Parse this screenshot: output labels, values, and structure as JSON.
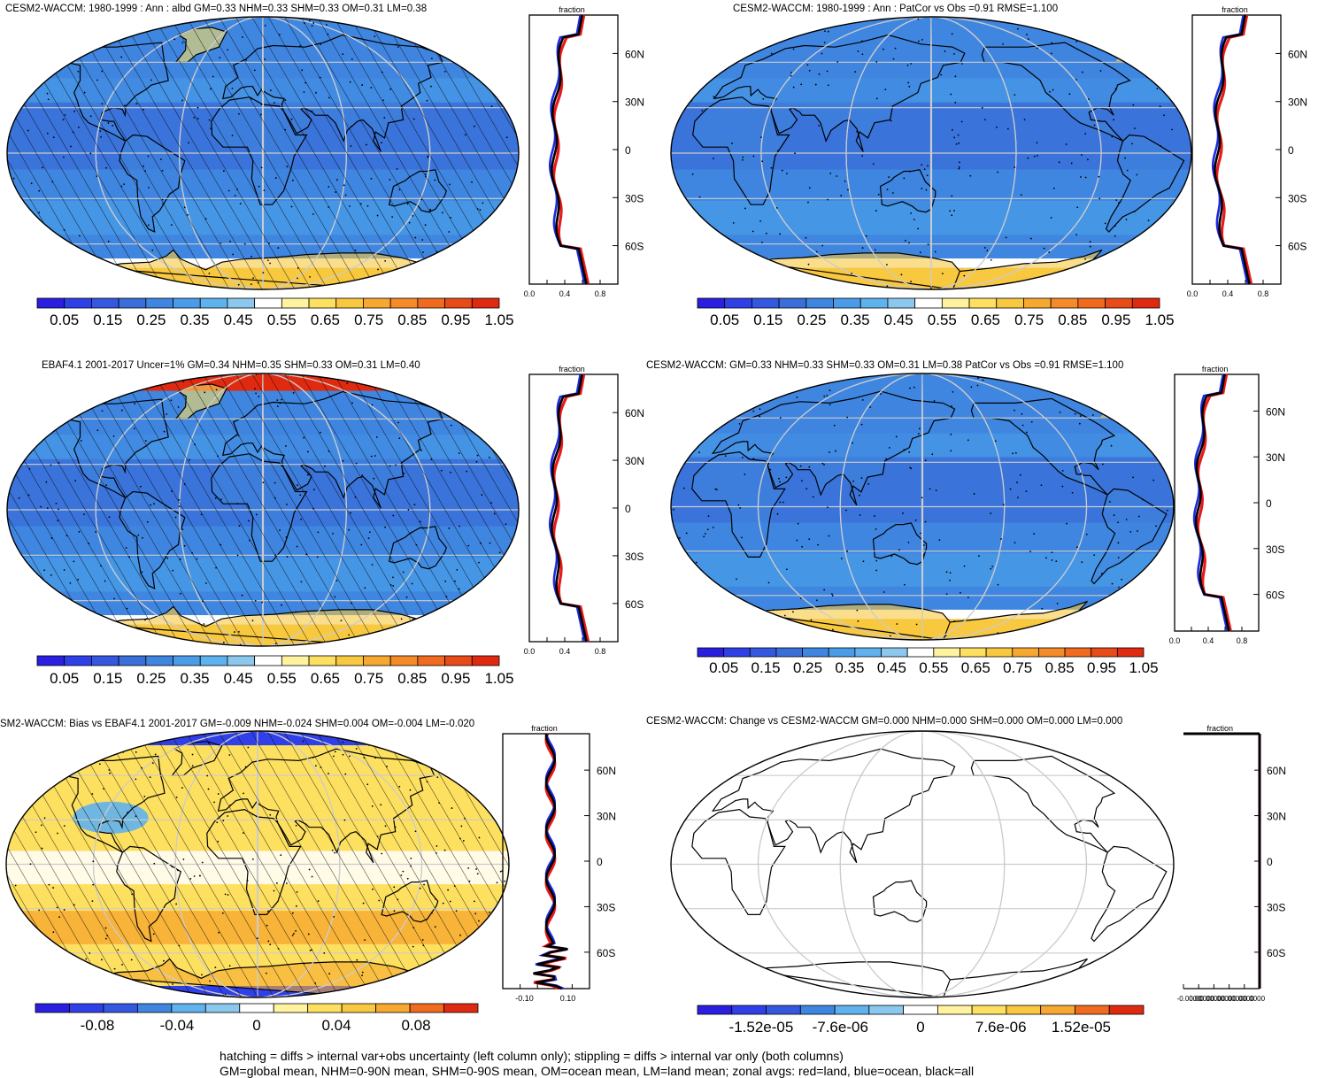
{
  "panels": [
    {
      "title": "CESM2-WACCM: 1980-1999 : Ann : albd GM=0.33 NHM=0.33 SHM=0.33 OM=0.31 LM=0.38",
      "zonal_title": "fraction",
      "lat_ticks": [
        "60N",
        "30N",
        "0",
        "30S",
        "60S"
      ],
      "x_ticks": [
        "0.0",
        "0.4",
        "0.8"
      ],
      "colorbar": [
        "0.05",
        "0.15",
        "0.25",
        "0.35",
        "0.45",
        "0.55",
        "0.65",
        "0.75",
        "0.85",
        "0.95",
        "1.05"
      ]
    },
    {
      "title": "CESM2-WACCM: 1980-1999 : Ann : PatCor vs Obs =0.91 RMSE=1.100",
      "zonal_title": "fraction",
      "lat_ticks": [
        "60N",
        "30N",
        "0",
        "30S",
        "60S"
      ],
      "x_ticks": [
        "0.0",
        "0.4",
        "0.8"
      ],
      "colorbar": [
        "0.05",
        "0.15",
        "0.25",
        "0.35",
        "0.45",
        "0.55",
        "0.65",
        "0.75",
        "0.85",
        "0.95",
        "1.05"
      ]
    },
    {
      "title": "EBAF4.1 2001-2017 Uncer=1% GM=0.34 NHM=0.35 SHM=0.33 OM=0.31 LM=0.40",
      "zonal_title": "fraction",
      "lat_ticks": [
        "60N",
        "30N",
        "0",
        "30S",
        "60S"
      ],
      "x_ticks": [
        "0.0",
        "0.4",
        "0.8"
      ],
      "colorbar": [
        "0.05",
        "0.15",
        "0.25",
        "0.35",
        "0.45",
        "0.55",
        "0.65",
        "0.75",
        "0.85",
        "0.95",
        "1.05"
      ]
    },
    {
      "title": "CESM2-WACCM: GM=0.33 NHM=0.33 SHM=0.33 OM=0.31 LM=0.38 PatCor vs Obs =0.91 RMSE=1.100",
      "zonal_title": "fraction",
      "lat_ticks": [
        "60N",
        "30N",
        "0",
        "30S",
        "60S"
      ],
      "x_ticks": [
        "0.0",
        "0.4",
        "0.8"
      ],
      "colorbar": [
        "0.05",
        "0.15",
        "0.25",
        "0.35",
        "0.45",
        "0.55",
        "0.65",
        "0.75",
        "0.85",
        "0.95",
        "1.05"
      ]
    },
    {
      "title": "SM2-WACCM: Bias vs EBAF4.1 2001-2017 GM=-0.009 NHM=-0.024 SHM=0.004 OM=-0.004 LM=-0.020",
      "zonal_title": "fraction",
      "lat_ticks": [
        "60N",
        "30N",
        "0",
        "30S",
        "60S"
      ],
      "x_ticks": [
        "-0.10",
        "0.10"
      ],
      "colorbar": [
        "-0.08",
        "-0.04",
        "0",
        "0.04",
        "0.08"
      ]
    },
    {
      "title": "CESM2-WACCM: Change vs CESM2-WACCM GM=0.000 NHM=0.000 SHM=0.000 OM=0.000 LM=0.000",
      "zonal_title": "fraction",
      "lat_ticks": [
        "60N",
        "30N",
        "0",
        "30S",
        "60S"
      ],
      "x_ticks": [
        "-0.0000",
        "0.0000",
        "0.0000",
        "0.0000",
        "0.0000",
        "0.0000",
        "0.0000"
      ],
      "colorbar": [
        "-1.52e-05",
        "-7.6e-06",
        "0",
        "7.6e-06",
        "1.52e-05"
      ]
    }
  ],
  "footer": {
    "line1": "hatching = diffs > internal var+obs uncertainty (left column only); stippling = diffs > internal var only (both columns)",
    "line2": "GM=global mean, NHM=0-90N mean, SHM=0-90S mean, OM=ocean mean, LM=land mean; zonal avgs: red=land, blue=ocean, black=all"
  },
  "colors": {
    "albedo_scale": [
      "#2a1fe0",
      "#3040e8",
      "#3558e0",
      "#3a6ed8",
      "#3f86e0",
      "#4a9ce8",
      "#5fb2ee",
      "#8cc8ee",
      "#ffffff",
      "#fff3a0",
      "#fde060",
      "#f8c840",
      "#f6a830",
      "#f48a28",
      "#f06a20",
      "#e84a18",
      "#e02a10"
    ],
    "bias_scale": [
      "#2a1fe0",
      "#3040e8",
      "#3558e0",
      "#3f86e0",
      "#5fb2ee",
      "#8cc8ee",
      "#ffffff",
      "#fff3a0",
      "#fde060",
      "#f8c840",
      "#f6a830",
      "#f06a20",
      "#e02a10"
    ],
    "zonal_land": "#e8191a",
    "zonal_ocean": "#1c2be0",
    "zonal_all": "#000000"
  }
}
